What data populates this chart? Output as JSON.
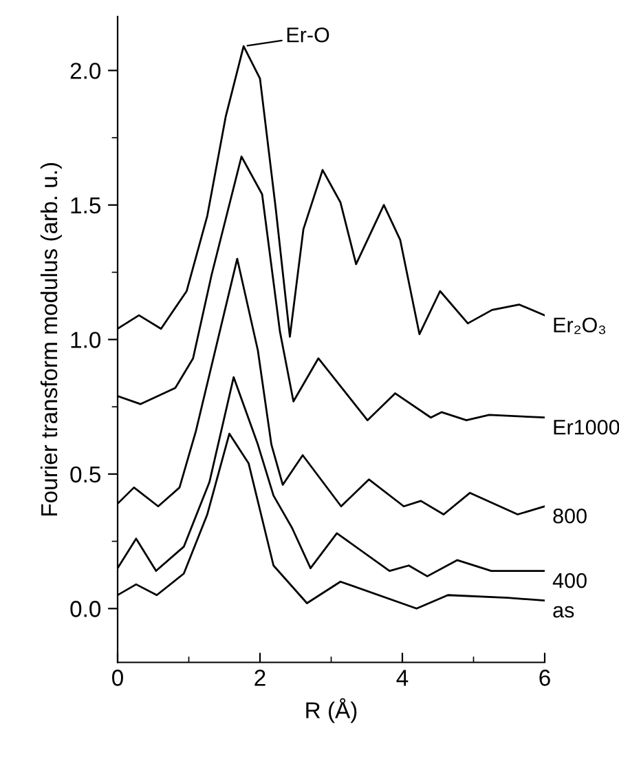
{
  "chart_data": {
    "type": "line",
    "xlabel": "R (Å)",
    "ylabel": "Fourier transform modulus (arb. u.)",
    "xlim": [
      0,
      6
    ],
    "xticks": [
      0,
      2,
      4,
      6
    ],
    "ylim": [
      -0.2,
      2.2
    ],
    "yticks": [
      {
        "value": 0,
        "label": "0.0"
      },
      {
        "value": 0.5,
        "label": "0.5"
      },
      {
        "value": 1,
        "label": "1.0"
      },
      {
        "value": 1.5,
        "label": "1.5"
      },
      {
        "value": 2,
        "label": "2.0"
      }
    ],
    "grid": false,
    "legend": false,
    "marker": "none",
    "line_style": "solid",
    "annotations": [
      {
        "text": "Er-O",
        "x": 1.77,
        "y": 2.09
      }
    ],
    "series": [
      {
        "name": "Er₂O₃",
        "color": "#000000",
        "x": [
          0,
          0.3,
          0.61,
          0.97,
          1.26,
          1.52,
          1.77,
          2.0,
          2.22,
          2.42,
          2.61,
          2.88,
          3.13,
          3.35,
          3.74,
          3.97,
          4.24,
          4.53,
          4.92,
          5.26,
          5.64,
          6.0
        ],
        "values": [
          1.04,
          1.09,
          1.04,
          1.18,
          1.46,
          1.83,
          2.09,
          1.97,
          1.49,
          1.01,
          1.41,
          1.63,
          1.51,
          1.28,
          1.5,
          1.37,
          1.02,
          1.18,
          1.06,
          1.11,
          1.13,
          1.09
        ]
      },
      {
        "name": "Er1000",
        "color": "#000000",
        "x": [
          0,
          0.32,
          0.81,
          1.06,
          1.32,
          1.74,
          2.03,
          2.28,
          2.47,
          2.82,
          3.51,
          3.9,
          4.4,
          4.55,
          4.9,
          5.22,
          6.0
        ],
        "values": [
          0.79,
          0.76,
          0.82,
          0.93,
          1.24,
          1.68,
          1.54,
          1.03,
          0.77,
          0.93,
          0.7,
          0.8,
          0.71,
          0.73,
          0.7,
          0.72,
          0.71
        ]
      },
      {
        "name": "800",
        "color": "#000000",
        "x": [
          0,
          0.23,
          0.57,
          0.87,
          1.1,
          1.68,
          1.97,
          2.16,
          2.32,
          2.6,
          3.14,
          3.53,
          4.02,
          4.26,
          4.58,
          4.95,
          5.62,
          6.0
        ],
        "values": [
          0.39,
          0.45,
          0.38,
          0.45,
          0.66,
          1.3,
          0.96,
          0.61,
          0.46,
          0.57,
          0.38,
          0.48,
          0.38,
          0.4,
          0.35,
          0.43,
          0.35,
          0.38
        ]
      },
      {
        "name": "400",
        "color": "#000000",
        "x": [
          0,
          0.26,
          0.54,
          0.93,
          1.29,
          1.63,
          1.97,
          2.19,
          2.45,
          2.71,
          3.08,
          3.82,
          4.09,
          4.35,
          4.77,
          5.25,
          6.0
        ],
        "values": [
          0.15,
          0.26,
          0.14,
          0.23,
          0.47,
          0.86,
          0.61,
          0.42,
          0.3,
          0.15,
          0.28,
          0.14,
          0.16,
          0.12,
          0.18,
          0.14,
          0.14
        ]
      },
      {
        "name": "as",
        "color": "#000000",
        "x": [
          0,
          0.26,
          0.55,
          0.93,
          1.26,
          1.57,
          1.84,
          2.19,
          2.66,
          3.13,
          4.2,
          4.64,
          5.48,
          6.0
        ],
        "values": [
          0.05,
          0.09,
          0.05,
          0.13,
          0.35,
          0.65,
          0.54,
          0.16,
          0.02,
          0.1,
          0.0,
          0.05,
          0.04,
          0.03
        ]
      }
    ]
  }
}
